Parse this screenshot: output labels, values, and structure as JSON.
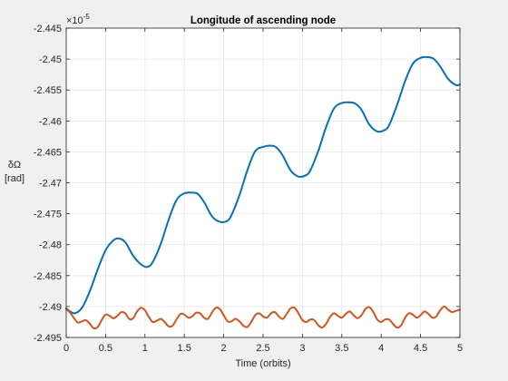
{
  "chart_data": {
    "type": "line",
    "title": "Longitude of ascending node",
    "xlabel": "Time (orbits)",
    "ylabel_symbol": "δΩ",
    "ylabel_unit": "[rad]",
    "exponent_label": "×10",
    "exponent_power": "-5",
    "xlim": [
      0,
      5
    ],
    "ylim": [
      -2.495,
      -2.445
    ],
    "y_scale_factor": 1e-05,
    "grid": true,
    "x_ticks": [
      0,
      0.5,
      1,
      1.5,
      2,
      2.5,
      3,
      3.5,
      4,
      4.5,
      5
    ],
    "x_tick_labels": [
      "0",
      "0.5",
      "1",
      "1.5",
      "2",
      "2.5",
      "3",
      "3.5",
      "4",
      "4.5",
      "5"
    ],
    "y_ticks": [
      -2.445,
      -2.45,
      -2.455,
      -2.46,
      -2.465,
      -2.47,
      -2.475,
      -2.48,
      -2.485,
      -2.49,
      -2.495
    ],
    "y_tick_labels": [
      "-2.445",
      "-2.45",
      "-2.455",
      "-2.46",
      "-2.465",
      "-2.47",
      "-2.475",
      "-2.48",
      "-2.485",
      "-2.49",
      "-2.495"
    ],
    "series": [
      {
        "color": "#0072BD",
        "x": [
          0,
          0.1,
          0.2,
          0.3,
          0.4,
          0.5,
          0.6,
          0.67,
          0.75,
          0.85,
          0.95,
          1.03,
          1.1,
          1.2,
          1.3,
          1.4,
          1.5,
          1.6,
          1.67,
          1.75,
          1.85,
          1.95,
          2.04,
          2.1,
          2.2,
          2.3,
          2.4,
          2.5,
          2.6,
          2.67,
          2.75,
          2.85,
          2.95,
          3.04,
          3.1,
          3.2,
          3.3,
          3.4,
          3.5,
          3.6,
          3.67,
          3.75,
          3.85,
          3.95,
          4.04,
          4.1,
          4.2,
          4.3,
          4.4,
          4.5,
          4.6,
          4.67,
          4.75,
          4.85,
          4.95,
          5.0
        ],
        "values": [
          -2.4903,
          -2.4911,
          -2.4902,
          -2.4875,
          -2.484,
          -2.4809,
          -2.4793,
          -2.479,
          -2.4796,
          -2.4818,
          -2.4832,
          -2.4836,
          -2.4828,
          -2.4799,
          -2.476,
          -2.4728,
          -2.4717,
          -2.4716,
          -2.4718,
          -2.4731,
          -2.4754,
          -2.4763,
          -2.4762,
          -2.4752,
          -2.472,
          -2.468,
          -2.4649,
          -2.4642,
          -2.464,
          -2.4643,
          -2.4656,
          -2.468,
          -2.469,
          -2.4688,
          -2.468,
          -2.4649,
          -2.461,
          -2.458,
          -2.4571,
          -2.457,
          -2.4572,
          -2.4582,
          -2.4606,
          -2.4617,
          -2.4615,
          -2.4607,
          -2.4575,
          -2.4537,
          -2.4508,
          -2.4498,
          -2.4497,
          -2.45,
          -2.4512,
          -2.4532,
          -2.4542,
          -2.4541
        ]
      },
      {
        "color": "#D95319",
        "x": [
          0,
          0.05,
          0.1,
          0.15,
          0.2,
          0.25,
          0.3,
          0.35,
          0.4,
          0.45,
          0.5,
          0.55,
          0.6,
          0.65,
          0.7,
          0.75,
          0.8,
          0.85,
          0.9,
          0.95,
          1.0,
          1.05,
          1.1,
          1.15,
          1.2,
          1.25,
          1.3,
          1.35,
          1.4,
          1.45,
          1.5,
          1.55,
          1.6,
          1.65,
          1.7,
          1.75,
          1.8,
          1.85,
          1.9,
          1.95,
          2.0,
          2.05,
          2.1,
          2.15,
          2.2,
          2.25,
          2.3,
          2.35,
          2.4,
          2.45,
          2.5,
          2.55,
          2.6,
          2.65,
          2.7,
          2.75,
          2.8,
          2.85,
          2.9,
          2.95,
          3.0,
          3.05,
          3.1,
          3.15,
          3.2,
          3.25,
          3.3,
          3.35,
          3.4,
          3.45,
          3.5,
          3.55,
          3.6,
          3.65,
          3.7,
          3.75,
          3.8,
          3.85,
          3.9,
          3.95,
          4.0,
          4.05,
          4.1,
          4.15,
          4.2,
          4.25,
          4.3,
          4.35,
          4.4,
          4.45,
          4.5,
          4.55,
          4.6,
          4.65,
          4.7,
          4.75,
          4.8,
          4.85,
          4.9,
          4.95,
          5.0
        ],
        "values": [
          -2.4904,
          -2.491,
          -2.4919,
          -2.4926,
          -2.4924,
          -2.4922,
          -2.4928,
          -2.4935,
          -2.4933,
          -2.4922,
          -2.4913,
          -2.4915,
          -2.4919,
          -2.4915,
          -2.4909,
          -2.4911,
          -2.492,
          -2.4919,
          -2.4908,
          -2.4902,
          -2.4906,
          -2.4917,
          -2.4925,
          -2.4923,
          -2.492,
          -2.4925,
          -2.4932,
          -2.4931,
          -2.4921,
          -2.4912,
          -2.4913,
          -2.4918,
          -2.4916,
          -2.491,
          -2.4911,
          -2.4918,
          -2.492,
          -2.491,
          -2.4902,
          -2.4904,
          -2.4914,
          -2.4924,
          -2.4924,
          -2.492,
          -2.4924,
          -2.4931,
          -2.4933,
          -2.4925,
          -2.4914,
          -2.4911,
          -2.4916,
          -2.4918,
          -2.4911,
          -2.4909,
          -2.4916,
          -2.492,
          -2.4912,
          -2.4903,
          -2.4902,
          -2.4911,
          -2.4922,
          -2.4925,
          -2.4921,
          -2.4922,
          -2.493,
          -2.4934,
          -2.4928,
          -2.4917,
          -2.4911,
          -2.4915,
          -2.4918,
          -2.4912,
          -2.4908,
          -2.4914,
          -2.4919,
          -2.4914,
          -2.4904,
          -2.4901,
          -2.4909,
          -2.4921,
          -2.4925,
          -2.4921,
          -2.4921,
          -2.4928,
          -2.4934,
          -2.4931,
          -2.4919,
          -2.4911,
          -2.4913,
          -2.4918,
          -2.4914,
          -2.4908,
          -2.4912,
          -2.4918,
          -2.4916,
          -2.4906,
          -2.49,
          -2.4905,
          -2.4909,
          -2.4907,
          -2.4905
        ]
      }
    ]
  }
}
